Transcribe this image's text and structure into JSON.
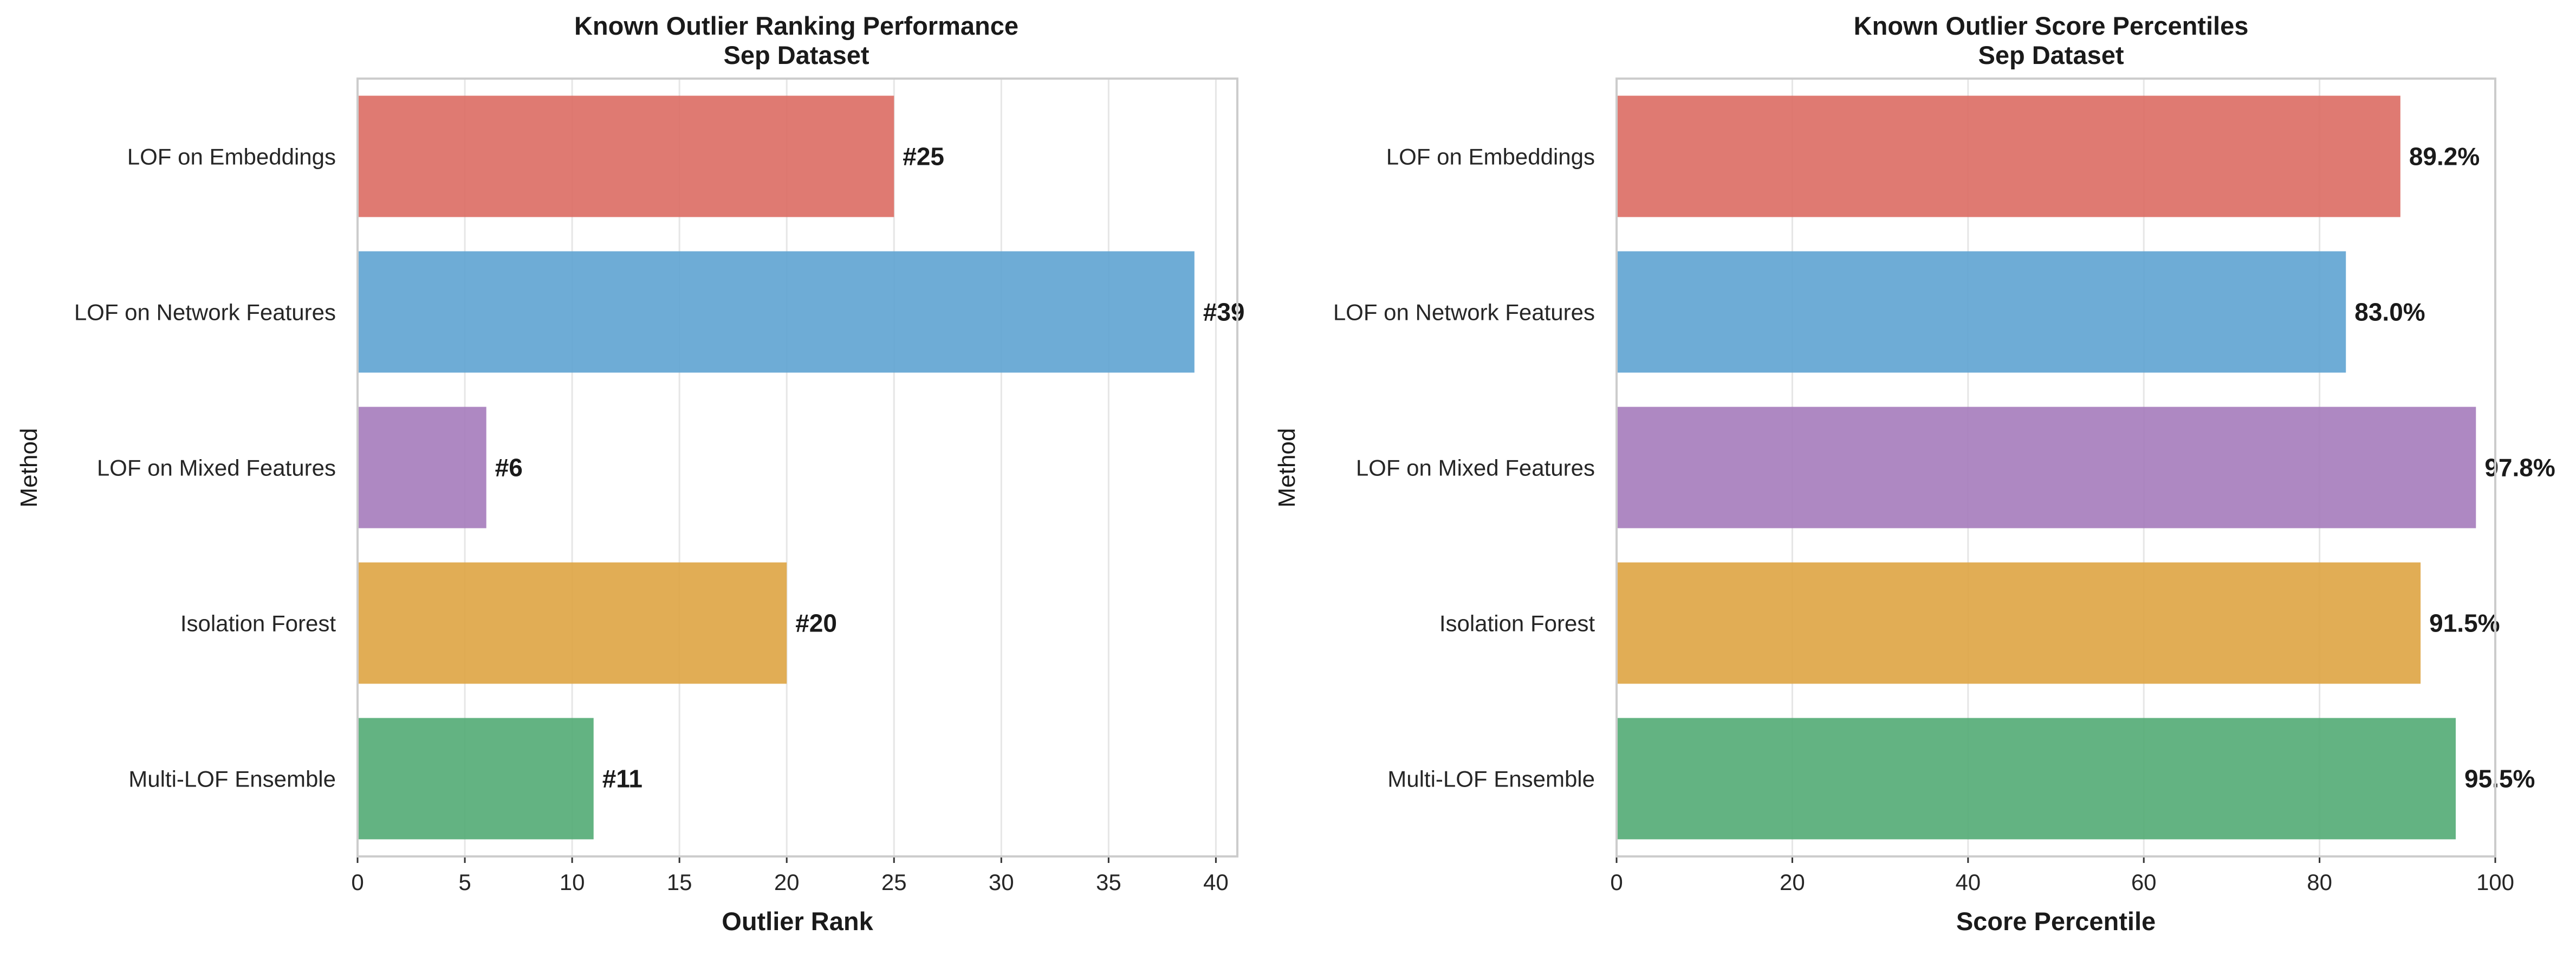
{
  "chart_data": [
    {
      "type": "bar",
      "orientation": "horizontal",
      "title": "Known Outlier Ranking Performance",
      "subtitle": "Sep Dataset",
      "xlabel": "Outlier Rank",
      "ylabel": "Method",
      "xlim": [
        0,
        41
      ],
      "xticks": [
        0,
        5,
        10,
        15,
        20,
        25,
        30,
        35,
        40
      ],
      "grid": "vertical",
      "categories": [
        "LOF on Embeddings",
        "LOF on Network Features",
        "LOF on Mixed Features",
        "Isolation Forest",
        "Multi-LOF Ensemble"
      ],
      "values": [
        25,
        39,
        6,
        20,
        11
      ],
      "data_labels": [
        "#25",
        "#39",
        "#6",
        "#20",
        "#11"
      ],
      "colors": [
        "#db6b63",
        "#5ea3d1",
        "#a57bbb",
        "#dea443",
        "#52ab74"
      ]
    },
    {
      "type": "bar",
      "orientation": "horizontal",
      "title": "Known Outlier Score Percentiles",
      "subtitle": "Sep Dataset",
      "xlabel": "Score Percentile",
      "ylabel": "Method",
      "xlim": [
        0,
        100
      ],
      "xticks": [
        0,
        20,
        40,
        60,
        80,
        100
      ],
      "grid": "vertical",
      "categories": [
        "LOF on Embeddings",
        "LOF on Network Features",
        "LOF on Mixed Features",
        "Isolation Forest",
        "Multi-LOF Ensemble"
      ],
      "values": [
        89.2,
        83.0,
        97.8,
        91.5,
        95.5
      ],
      "data_labels": [
        "89.2%",
        "83.0%",
        "97.8%",
        "91.5%",
        "95.5%"
      ],
      "colors": [
        "#db6b63",
        "#5ea3d1",
        "#a57bbb",
        "#dea443",
        "#52ab74"
      ]
    }
  ]
}
